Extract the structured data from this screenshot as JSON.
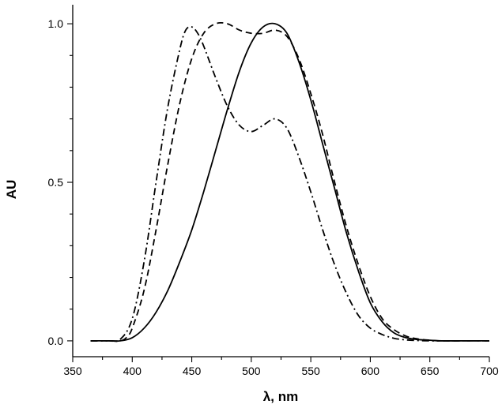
{
  "chart_data": {
    "type": "line",
    "title": "",
    "xlabel": "λ, nm",
    "ylabel": "AU",
    "xlim": [
      350,
      700
    ],
    "ylim": [
      -0.05,
      1.06
    ],
    "grid": false,
    "legend": "none",
    "x_ticks": [
      350,
      400,
      450,
      500,
      550,
      600,
      650,
      700
    ],
    "y_ticks": [
      0.0,
      0.5,
      1.0
    ],
    "x_tick_labels": [
      "350",
      "400",
      "450",
      "500",
      "550",
      "600",
      "650",
      "700"
    ],
    "y_tick_labels": [
      "0.0",
      "0.5",
      "1.0"
    ],
    "series": [
      {
        "name": "solid",
        "style": "solid",
        "x": [
          365,
          380,
          390,
          400,
          410,
          420,
          430,
          440,
          450,
          460,
          470,
          480,
          490,
          500,
          510,
          520,
          530,
          540,
          550,
          560,
          570,
          580,
          590,
          600,
          610,
          620,
          630,
          640,
          650,
          660,
          680,
          700
        ],
        "y": [
          0.0,
          0.0,
          0.0,
          0.01,
          0.04,
          0.09,
          0.16,
          0.25,
          0.35,
          0.47,
          0.6,
          0.73,
          0.85,
          0.94,
          0.99,
          1.0,
          0.97,
          0.88,
          0.76,
          0.62,
          0.48,
          0.34,
          0.22,
          0.12,
          0.06,
          0.025,
          0.01,
          0.004,
          0.002,
          0.0,
          0.0,
          0.0
        ]
      },
      {
        "name": "dashed",
        "style": "dashed",
        "x": [
          365,
          380,
          390,
          395,
          400,
          410,
          420,
          430,
          440,
          450,
          460,
          470,
          480,
          490,
          500,
          510,
          520,
          530,
          540,
          550,
          560,
          570,
          580,
          590,
          600,
          610,
          620,
          630,
          640,
          650,
          660,
          680,
          700
        ],
        "y": [
          0.0,
          0.0,
          0.0,
          0.01,
          0.04,
          0.16,
          0.35,
          0.56,
          0.75,
          0.89,
          0.97,
          1.0,
          1.0,
          0.98,
          0.97,
          0.97,
          0.98,
          0.96,
          0.89,
          0.78,
          0.65,
          0.5,
          0.36,
          0.24,
          0.14,
          0.07,
          0.035,
          0.015,
          0.006,
          0.002,
          0.0,
          0.0,
          0.0
        ]
      },
      {
        "name": "dash-dot",
        "style": "dashdot",
        "x": [
          365,
          380,
          390,
          400,
          410,
          420,
          430,
          440,
          445,
          450,
          455,
          460,
          470,
          480,
          490,
          500,
          510,
          520,
          530,
          540,
          550,
          560,
          570,
          580,
          590,
          600,
          610,
          620,
          630,
          640,
          650,
          660,
          680,
          700
        ],
        "y": [
          0.0,
          0.0,
          0.005,
          0.07,
          0.25,
          0.5,
          0.74,
          0.92,
          0.98,
          0.99,
          0.97,
          0.93,
          0.83,
          0.74,
          0.68,
          0.66,
          0.68,
          0.7,
          0.67,
          0.58,
          0.47,
          0.35,
          0.24,
          0.15,
          0.08,
          0.04,
          0.02,
          0.008,
          0.003,
          0.001,
          0.0,
          0.0,
          0.0,
          0.0
        ]
      }
    ]
  }
}
